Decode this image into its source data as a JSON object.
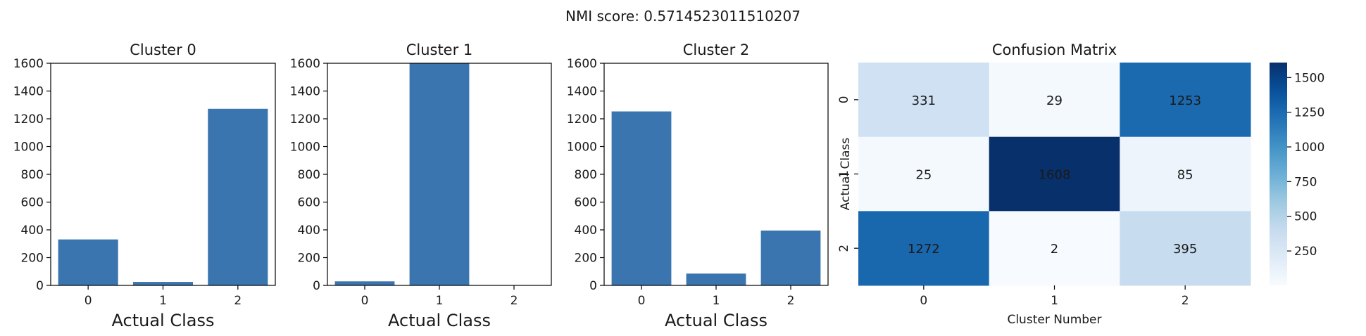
{
  "suptitle": "NMI score: 0.5714523011510207",
  "chart_data": [
    {
      "type": "bar",
      "title": "Cluster 0",
      "xlabel": "Actual Class",
      "categories": [
        "0",
        "1",
        "2"
      ],
      "values": [
        331,
        25,
        1272
      ],
      "ylim": [
        0,
        1600
      ],
      "yticks": [
        0,
        200,
        400,
        600,
        800,
        1000,
        1200,
        1400,
        1600
      ],
      "color": "#3a75b0"
    },
    {
      "type": "bar",
      "title": "Cluster 1",
      "xlabel": "Actual Class",
      "categories": [
        "0",
        "1",
        "2"
      ],
      "values": [
        29,
        1608,
        2
      ],
      "ylim": [
        0,
        1600
      ],
      "yticks": [
        0,
        200,
        400,
        600,
        800,
        1000,
        1200,
        1400,
        1600
      ],
      "color": "#3a75b0"
    },
    {
      "type": "bar",
      "title": "Cluster 2",
      "xlabel": "Actual Class",
      "categories": [
        "0",
        "1",
        "2"
      ],
      "values": [
        1253,
        85,
        395
      ],
      "ylim": [
        0,
        1600
      ],
      "yticks": [
        0,
        200,
        400,
        600,
        800,
        1000,
        1200,
        1400,
        1600
      ],
      "color": "#3a75b0"
    },
    {
      "type": "heatmap",
      "title": "Confusion Matrix",
      "xlabel": "Cluster Number",
      "ylabel": "Actual Class",
      "x_categories": [
        "0",
        "1",
        "2"
      ],
      "y_categories": [
        "0",
        "1",
        "2"
      ],
      "values": [
        [
          331,
          29,
          1253
        ],
        [
          25,
          1608,
          85
        ],
        [
          1272,
          2,
          395
        ]
      ],
      "colormap": "Blues",
      "colorbar_ticks": [
        250,
        500,
        750,
        1000,
        1250,
        1500
      ]
    }
  ]
}
